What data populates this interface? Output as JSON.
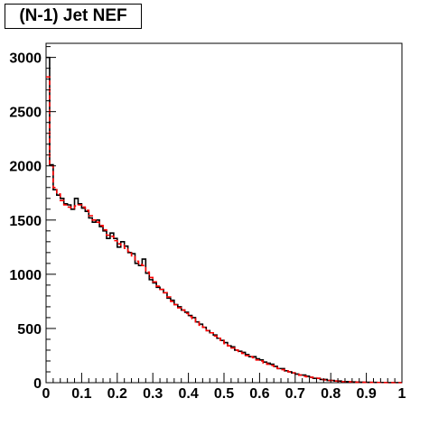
{
  "chart_data": {
    "type": "histogram",
    "title": "(N-1) Jet NEF",
    "xlabel": "",
    "ylabel": "",
    "xlim": [
      0,
      1
    ],
    "ylim": [
      0,
      3130
    ],
    "xticks": [
      "0",
      "0.1",
      "0.2",
      "0.3",
      "0.4",
      "0.5",
      "0.6",
      "0.7",
      "0.8",
      "0.9",
      "1"
    ],
    "yticks": [
      "0",
      "500",
      "1000",
      "1500",
      "2000",
      "2500",
      "3000"
    ],
    "bin_width": 0.01,
    "grid": false,
    "legend": "none",
    "series": [
      {
        "color": "#000000",
        "style": "solid",
        "values": [
          3000,
          2010,
          1780,
          1730,
          1700,
          1650,
          1640,
          1600,
          1700,
          1650,
          1610,
          1580,
          1520,
          1480,
          1500,
          1440,
          1400,
          1330,
          1380,
          1330,
          1250,
          1300,
          1260,
          1200,
          1190,
          1100,
          1080,
          1140,
          1010,
          950,
          920,
          880,
          860,
          830,
          780,
          760,
          720,
          700,
          670,
          650,
          620,
          600,
          560,
          540,
          510,
          480,
          460,
          440,
          410,
          390,
          370,
          340,
          330,
          300,
          290,
          280,
          260,
          240,
          240,
          220,
          210,
          190,
          180,
          170,
          150,
          130,
          130,
          110,
          100,
          90,
          80,
          70,
          70,
          60,
          50,
          40,
          40,
          30,
          30,
          20,
          20,
          15,
          15,
          10,
          10,
          8,
          7,
          6,
          5,
          4,
          4,
          3,
          3,
          2,
          2,
          2,
          1,
          1,
          1,
          1
        ]
      },
      {
        "color": "#ff0000",
        "style": "dashed",
        "values": [
          2820,
          2000,
          1800,
          1740,
          1680,
          1640,
          1620,
          1610,
          1630,
          1640,
          1620,
          1590,
          1540,
          1500,
          1480,
          1450,
          1410,
          1360,
          1350,
          1310,
          1280,
          1270,
          1240,
          1210,
          1170,
          1120,
          1090,
          1080,
          1020,
          970,
          930,
          890,
          860,
          830,
          790,
          750,
          720,
          690,
          670,
          640,
          610,
          590,
          560,
          530,
          510,
          480,
          460,
          430,
          410,
          390,
          360,
          340,
          320,
          300,
          280,
          270,
          250,
          240,
          230,
          210,
          200,
          180,
          170,
          160,
          140,
          130,
          120,
          110,
          100,
          90,
          80,
          70,
          60,
          55,
          50,
          45,
          40,
          30,
          25,
          20,
          20,
          15,
          12,
          10,
          8,
          8,
          6,
          5,
          5,
          4,
          3,
          3,
          2,
          2,
          2,
          1,
          1,
          1,
          1,
          1
        ]
      }
    ]
  }
}
